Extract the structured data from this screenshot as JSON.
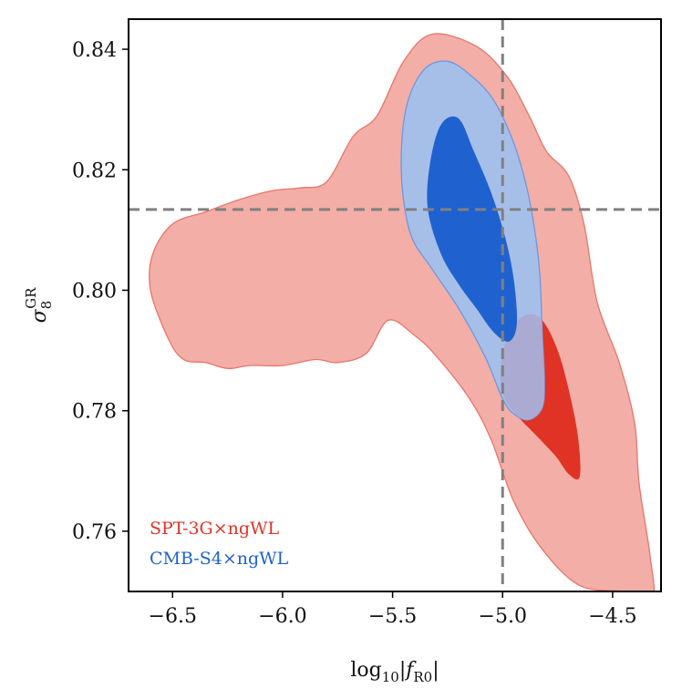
{
  "chart_data": {
    "type": "contour",
    "xlabel": "log10|fR0|",
    "xlabel_main": "log",
    "xlabel_sub": "10",
    "xlabel_rest": "|f",
    "xlabel_rest_sub": "R0",
    "xlabel_end": "|",
    "ylabel": "σ8 GR",
    "ylabel_main": "σ",
    "ylabel_sub": "8",
    "ylabel_sup": "GR",
    "xlim": [
      -6.7,
      -4.28
    ],
    "ylim": [
      0.75,
      0.845
    ],
    "xticks": [
      -6.5,
      -6.0,
      -5.5,
      -5.0,
      -4.5
    ],
    "xtick_labels": [
      "−6.5",
      "−6.0",
      "−5.5",
      "−5.0",
      "−4.5"
    ],
    "yticks": [
      0.76,
      0.78,
      0.8,
      0.82,
      0.84
    ],
    "ytick_labels": [
      "0.76",
      "0.78",
      "0.80",
      "0.82",
      "0.84"
    ],
    "reference_lines": {
      "x": -5.0,
      "y": 0.8134
    },
    "colors": {
      "spt_outer": "#f3aea7",
      "spt_outer_edge": "#e8766b",
      "spt_inner": "#e03325",
      "cmb_outer": "#a6bfe9",
      "cmb_outer_edge": "#6f97de",
      "cmb_inner": "#1f62cf",
      "overlap": "#aaaad3",
      "refline": "#808080"
    },
    "series": [
      {
        "name": "SPT-3G×ngWL",
        "color": "#e03325",
        "contours": {
          "outer": [
            [
              -6.52,
              0.792
            ],
            [
              -6.6,
              0.8
            ],
            [
              -6.59,
              0.806
            ],
            [
              -6.5,
              0.811
            ],
            [
              -6.35,
              0.813
            ],
            [
              -6.2,
              0.815
            ],
            [
              -6.05,
              0.8165
            ],
            [
              -5.92,
              0.817
            ],
            [
              -5.8,
              0.818
            ],
            [
              -5.68,
              0.8255
            ],
            [
              -5.57,
              0.829
            ],
            [
              -5.45,
              0.838
            ],
            [
              -5.32,
              0.8425
            ],
            [
              -5.12,
              0.8405
            ],
            [
              -4.98,
              0.8355
            ],
            [
              -4.88,
              0.829
            ],
            [
              -4.8,
              0.823
            ],
            [
              -4.7,
              0.819
            ],
            [
              -4.63,
              0.811
            ],
            [
              -4.57,
              0.798
            ],
            [
              -4.47,
              0.788
            ],
            [
              -4.4,
              0.778
            ],
            [
              -4.38,
              0.768
            ],
            [
              -4.33,
              0.756
            ],
            [
              -4.32,
              0.749
            ],
            [
              -4.45,
              0.75
            ],
            [
              -4.65,
              0.751
            ],
            [
              -4.82,
              0.757
            ],
            [
              -4.95,
              0.765
            ],
            [
              -5.05,
              0.775
            ],
            [
              -5.15,
              0.782
            ],
            [
              -5.3,
              0.789
            ],
            [
              -5.4,
              0.7925
            ],
            [
              -5.52,
              0.795
            ],
            [
              -5.62,
              0.7895
            ],
            [
              -5.75,
              0.788
            ],
            [
              -5.85,
              0.7885
            ],
            [
              -6.0,
              0.7875
            ],
            [
              -6.15,
              0.7875
            ],
            [
              -6.25,
              0.787
            ],
            [
              -6.35,
              0.788
            ],
            [
              -6.45,
              0.7885
            ]
          ],
          "inner": [
            [
              -4.93,
              0.795
            ],
            [
              -4.86,
              0.796
            ],
            [
              -4.8,
              0.794
            ],
            [
              -4.74,
              0.789
            ],
            [
              -4.69,
              0.782
            ],
            [
              -4.655,
              0.775
            ],
            [
              -4.65,
              0.769
            ],
            [
              -4.7,
              0.7695
            ],
            [
              -4.76,
              0.7725
            ],
            [
              -4.85,
              0.776
            ],
            [
              -4.93,
              0.779
            ],
            [
              -4.99,
              0.782
            ],
            [
              -5.01,
              0.786
            ],
            [
              -4.99,
              0.791
            ]
          ]
        }
      },
      {
        "name": "CMB-S4×ngWL",
        "color": "#1f62cf",
        "contours": {
          "outer": [
            [
              -5.46,
              0.8195
            ],
            [
              -5.44,
              0.83
            ],
            [
              -5.36,
              0.8365
            ],
            [
              -5.25,
              0.838
            ],
            [
              -5.14,
              0.8355
            ],
            [
              -5.04,
              0.8315
            ],
            [
              -4.95,
              0.8245
            ],
            [
              -4.89,
              0.817
            ],
            [
              -4.85,
              0.809
            ],
            [
              -4.83,
              0.802
            ],
            [
              -4.82,
              0.793
            ],
            [
              -4.81,
              0.785
            ],
            [
              -4.82,
              0.7805
            ],
            [
              -4.88,
              0.7785
            ],
            [
              -4.95,
              0.7795
            ],
            [
              -5.0,
              0.782
            ],
            [
              -5.08,
              0.789
            ],
            [
              -5.2,
              0.797
            ],
            [
              -5.32,
              0.8035
            ],
            [
              -5.42,
              0.8095
            ]
          ],
          "inner": [
            [
              -5.34,
              0.8135
            ],
            [
              -5.33,
              0.821
            ],
            [
              -5.28,
              0.8275
            ],
            [
              -5.2,
              0.8285
            ],
            [
              -5.13,
              0.823
            ],
            [
              -5.05,
              0.816
            ],
            [
              -4.99,
              0.809
            ],
            [
              -4.95,
              0.802
            ],
            [
              -4.935,
              0.7945
            ],
            [
              -4.97,
              0.7915
            ],
            [
              -5.04,
              0.793
            ],
            [
              -5.12,
              0.797
            ],
            [
              -5.2,
              0.801
            ],
            [
              -5.28,
              0.806
            ]
          ]
        }
      }
    ],
    "legend": [
      {
        "label": "SPT-3G×ngWL",
        "color": "#e03325"
      },
      {
        "label": "CMB-S4×ngWL",
        "color": "#1f62cf"
      }
    ],
    "legend_position": "bottom-left"
  }
}
